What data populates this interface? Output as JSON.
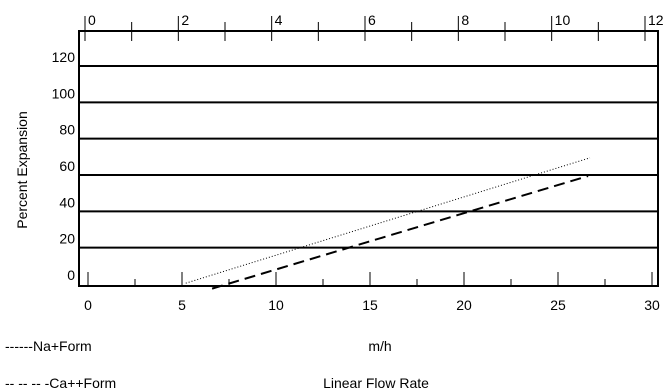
{
  "chart_data": {
    "type": "line",
    "title": "",
    "x_bottom": {
      "ticks": [
        0,
        5,
        10,
        15,
        20,
        25,
        30
      ],
      "unit_label": "m/h",
      "title": "Linear Flow Rate",
      "range": [
        0,
        30
      ]
    },
    "x_top": {
      "ticks": [
        0,
        2,
        4,
        6,
        8,
        10,
        12
      ],
      "range": [
        0,
        12
      ]
    },
    "y": {
      "title": "Percent Expansion",
      "ticks": [
        0,
        20,
        40,
        60,
        80,
        100,
        120
      ],
      "range": [
        -5,
        133
      ]
    },
    "grid": "horizontal",
    "series": [
      {
        "name": "Na+Form",
        "legend_text": "------Na+Form",
        "style": "dotted",
        "points": [
          [
            5.2,
            1
          ],
          [
            26.7,
            70
          ]
        ]
      },
      {
        "name": "Ca++Form",
        "legend_text": "-- -- -- -Ca++Form",
        "style": "dashed",
        "points": [
          [
            6.6,
            -2
          ],
          [
            26.6,
            60
          ]
        ]
      }
    ]
  }
}
